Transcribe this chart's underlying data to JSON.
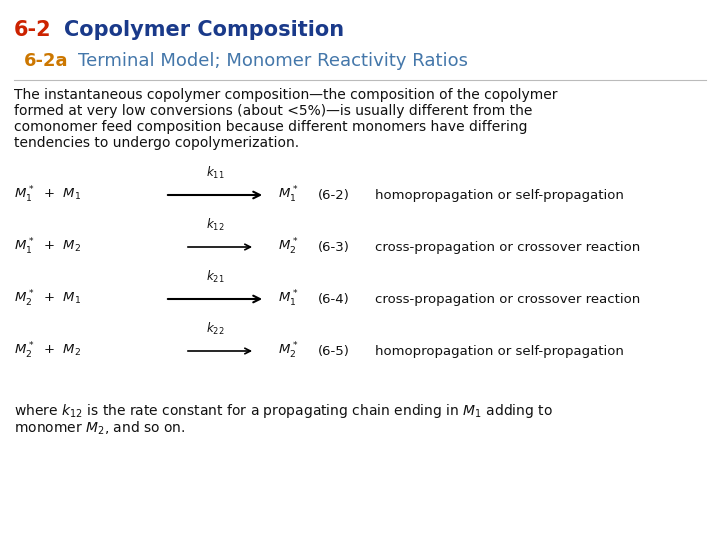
{
  "bg_color": "#ffffff",
  "title1_red": "#cc2200",
  "title1_blue": "#1a3a8a",
  "title1_fontsize": 15,
  "title2_orange": "#cc7700",
  "title2_blue": "#4477aa",
  "title2_fontsize": 13,
  "body_fontsize": 10,
  "body_color": "#111111",
  "body_text_line1": "The instantaneous copolymer composition—the composition of the copolymer",
  "body_text_line2": "formed at very low conversions (about <5%)—is usually different from the",
  "body_text_line3": "comonomer feed composition because different monomers have differing",
  "body_text_line4": "tendencies to undergo copolymerization.",
  "eq_fontsize": 9.5,
  "eq_color": "#111111",
  "footer_line1": "where k",
  "footer_line2": "monomer M",
  "reactions": [
    {
      "k": "$k_{11}$",
      "lhs": "$M_1^*$  +  $M_1$",
      "rhs": "$M_1^*$",
      "label": "(6-2)",
      "desc": "homopropagation or self-propagation",
      "long": true
    },
    {
      "k": "$k_{12}$",
      "lhs": "$M_1^*$  +  $M_2$",
      "rhs": "$M_2^*$",
      "label": "(6-3)",
      "desc": "cross-propagation or crossover reaction",
      "long": false
    },
    {
      "k": "$k_{21}$",
      "lhs": "$M_2^*$  +  $M_1$",
      "rhs": "$M_1^*$",
      "label": "(6-4)",
      "desc": "cross-propagation or crossover reaction",
      "long": true
    },
    {
      "k": "$k_{22}$",
      "lhs": "$M_2^*$  +  $M_2$",
      "rhs": "$M_2^*$",
      "label": "(6-5)",
      "desc": "homopropagation or self-propagation",
      "long": false
    }
  ]
}
